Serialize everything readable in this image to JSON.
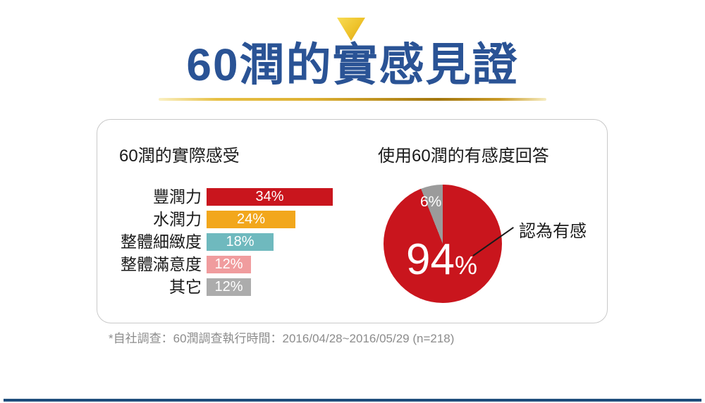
{
  "page": {
    "title": "60潤的實感見證",
    "footnote": "*自社調查：60潤調查執行時間：2016/04/28~2016/05/29 (n=218)"
  },
  "colors": {
    "title_blue": "#2a5395",
    "gold": "#e7c045",
    "bottom_rule_blue": "#1f4e7c",
    "footnote_gray": "#8c8c8c"
  },
  "chart_data": [
    {
      "type": "bar",
      "title": "60潤的實際感受",
      "orientation": "horizontal",
      "categories": [
        "豐潤力",
        "水潤力",
        "整體細緻度",
        "整體滿意度",
        "其它"
      ],
      "values": [
        34,
        24,
        18,
        12,
        12
      ],
      "value_labels": [
        "34%",
        "24%",
        "18%",
        "12%",
        "12%"
      ],
      "bar_colors": [
        "#c9151d",
        "#f2a71c",
        "#6fb9be",
        "#f09c9e",
        "#acacac"
      ],
      "xlim": [
        0,
        36
      ],
      "grid": false,
      "value_label_position": "inside-center"
    },
    {
      "type": "pie",
      "title": "使用60潤的有感度回答",
      "slices": [
        {
          "value": 94,
          "display": "94%",
          "color": "#c9151d"
        },
        {
          "value": 6,
          "display": "6%",
          "color": "#9b9b9b"
        }
      ],
      "center_label": {
        "big": "94",
        "small": "%"
      },
      "annotation": "認為有感",
      "legend_position": "none"
    }
  ]
}
